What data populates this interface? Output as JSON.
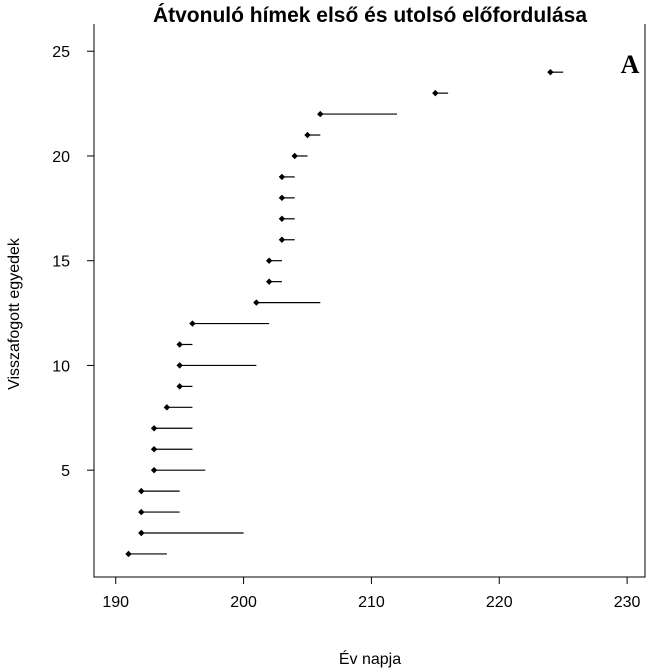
{
  "chart_data": {
    "type": "scatter",
    "title": "Átvonuló hímek első és utolsó előfordulása",
    "xlabel": "Év napja",
    "ylabel": "Visszafogott egyedek",
    "panel_label": "A",
    "xlim": [
      188.3,
      231.4
    ],
    "ylim": [
      -0.1,
      26.3
    ],
    "xticks": [
      190,
      200,
      210,
      220,
      230
    ],
    "yticks": [
      5,
      10,
      15,
      20,
      25
    ],
    "grid": false,
    "marker": "diamond",
    "individuals": [
      {
        "y": 1,
        "first": 191,
        "last": 194
      },
      {
        "y": 2,
        "first": 192,
        "last": 200
      },
      {
        "y": 3,
        "first": 192,
        "last": 195
      },
      {
        "y": 4,
        "first": 192,
        "last": 195
      },
      {
        "y": 5,
        "first": 193,
        "last": 197
      },
      {
        "y": 6,
        "first": 193,
        "last": 196
      },
      {
        "y": 7,
        "first": 193,
        "last": 196
      },
      {
        "y": 8,
        "first": 194,
        "last": 196
      },
      {
        "y": 9,
        "first": 195,
        "last": 196
      },
      {
        "y": 10,
        "first": 195,
        "last": 201
      },
      {
        "y": 11,
        "first": 195,
        "last": 196
      },
      {
        "y": 12,
        "first": 196,
        "last": 202
      },
      {
        "y": 13,
        "first": 201,
        "last": 206
      },
      {
        "y": 14,
        "first": 202,
        "last": 203
      },
      {
        "y": 15,
        "first": 202,
        "last": 203
      },
      {
        "y": 16,
        "first": 203,
        "last": 204
      },
      {
        "y": 17,
        "first": 203,
        "last": 204
      },
      {
        "y": 18,
        "first": 203,
        "last": 204
      },
      {
        "y": 19,
        "first": 203,
        "last": 204
      },
      {
        "y": 20,
        "first": 204,
        "last": 205
      },
      {
        "y": 21,
        "first": 205,
        "last": 206
      },
      {
        "y": 22,
        "first": 206,
        "last": 212
      },
      {
        "y": 23,
        "first": 215,
        "last": 216
      },
      {
        "y": 24,
        "first": 224,
        "last": 225
      }
    ]
  }
}
